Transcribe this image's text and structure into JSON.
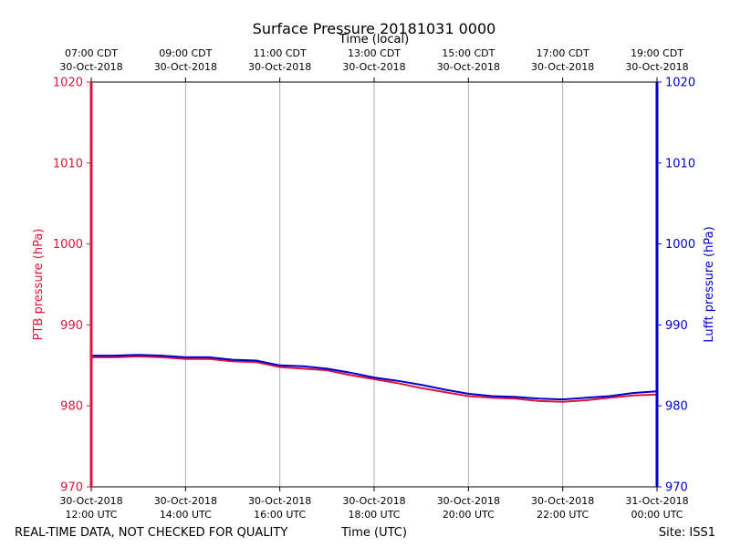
{
  "chart_data": {
    "type": "line",
    "title": "Surface Pressure 20181031 0000",
    "top_axis_label": "Time (local)",
    "xlabel": "Time (UTC)",
    "ylabel_left": "PTB pressure (hPa)",
    "ylabel_right": "Lufft pressure (hPa)",
    "ylim": [
      970,
      1020
    ],
    "yticks": [
      970,
      980,
      990,
      1000,
      1010,
      1020
    ],
    "xlim_hours": [
      12,
      24
    ],
    "bottom_ticks": [
      {
        "hour": 12,
        "date": "30-Oct-2018",
        "time": "12:00 UTC"
      },
      {
        "hour": 14,
        "date": "30-Oct-2018",
        "time": "14:00 UTC"
      },
      {
        "hour": 16,
        "date": "30-Oct-2018",
        "time": "16:00 UTC"
      },
      {
        "hour": 18,
        "date": "30-Oct-2018",
        "time": "18:00 UTC"
      },
      {
        "hour": 20,
        "date": "30-Oct-2018",
        "time": "20:00 UTC"
      },
      {
        "hour": 22,
        "date": "30-Oct-2018",
        "time": "22:00 UTC"
      },
      {
        "hour": 24,
        "date": "31-Oct-2018",
        "time": "00:00 UTC"
      }
    ],
    "top_ticks": [
      {
        "hour": 12,
        "time": "07:00 CDT",
        "date": "30-Oct-2018"
      },
      {
        "hour": 14,
        "time": "09:00 CDT",
        "date": "30-Oct-2018"
      },
      {
        "hour": 16,
        "time": "11:00 CDT",
        "date": "30-Oct-2018"
      },
      {
        "hour": 18,
        "time": "13:00 CDT",
        "date": "30-Oct-2018"
      },
      {
        "hour": 20,
        "time": "15:00 CDT",
        "date": "30-Oct-2018"
      },
      {
        "hour": 22,
        "time": "17:00 CDT",
        "date": "30-Oct-2018"
      },
      {
        "hour": 24,
        "time": "19:00 CDT",
        "date": "30-Oct-2018"
      }
    ],
    "grid": "vertical",
    "series": [
      {
        "axis": "left",
        "color": "#dc143c",
        "x": [
          12.0,
          12.5,
          13.0,
          13.5,
          14.0,
          14.5,
          15.0,
          15.5,
          16.0,
          16.5,
          17.0,
          17.5,
          18.0,
          18.5,
          19.0,
          19.5,
          20.0,
          20.5,
          21.0,
          21.5,
          22.0,
          22.5,
          23.0,
          23.5,
          24.0
        ],
        "values": [
          986.0,
          986.0,
          986.1,
          986.0,
          985.8,
          985.8,
          985.5,
          985.4,
          984.8,
          984.6,
          984.4,
          983.8,
          983.3,
          982.8,
          982.2,
          981.7,
          981.2,
          981.0,
          980.9,
          980.6,
          980.5,
          980.7,
          981.0,
          981.3,
          981.4
        ]
      },
      {
        "axis": "right",
        "color": "#0000cd",
        "x": [
          12.0,
          12.5,
          13.0,
          13.5,
          14.0,
          14.5,
          15.0,
          15.5,
          16.0,
          16.5,
          17.0,
          17.5,
          18.0,
          18.5,
          19.0,
          19.5,
          20.0,
          20.5,
          21.0,
          21.5,
          22.0,
          22.5,
          23.0,
          23.5,
          24.0
        ],
        "values": [
          986.2,
          986.2,
          986.3,
          986.2,
          986.0,
          986.0,
          985.7,
          985.6,
          985.0,
          984.9,
          984.6,
          984.1,
          983.5,
          983.1,
          982.6,
          982.0,
          981.5,
          981.2,
          981.1,
          980.9,
          980.8,
          981.0,
          981.2,
          981.6,
          981.8
        ]
      }
    ]
  },
  "footer": {
    "left_note": "REAL-TIME DATA, NOT CHECKED FOR QUALITY",
    "site": "Site: ISS1"
  }
}
